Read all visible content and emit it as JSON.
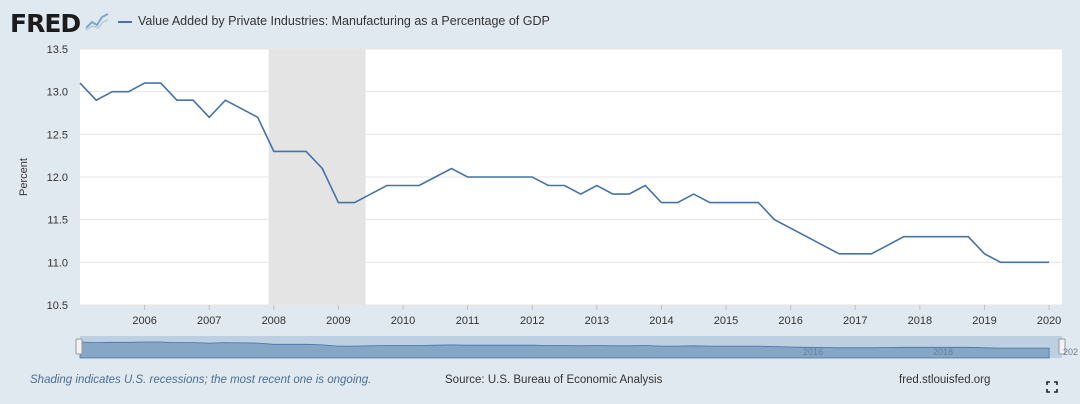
{
  "header": {
    "logo_text": "FRED",
    "legend_label": "Value Added by Private Industries: Manufacturing as a Percentage of GDP"
  },
  "chart_data": {
    "type": "line",
    "title": "",
    "xlabel": "",
    "ylabel": "Percent",
    "xlim": [
      2005.0,
      2020.2
    ],
    "ylim": [
      10.5,
      13.5
    ],
    "yticks": [
      "10.5",
      "11.0",
      "11.5",
      "12.0",
      "12.5",
      "13.0",
      "13.5"
    ],
    "xticks": [
      "2006",
      "2007",
      "2008",
      "2009",
      "2010",
      "2011",
      "2012",
      "2013",
      "2014",
      "2015",
      "2016",
      "2017",
      "2018",
      "2019",
      "2020"
    ],
    "grid": true,
    "recession": [
      2007.92,
      2009.42
    ],
    "series": [
      {
        "name": "Value Added by Private Industries: Manufacturing as a Percentage of GDP",
        "color": "#4572a7",
        "x": [
          2005.0,
          2005.25,
          2005.5,
          2005.75,
          2006.0,
          2006.25,
          2006.5,
          2006.75,
          2007.0,
          2007.25,
          2007.5,
          2007.75,
          2008.0,
          2008.25,
          2008.5,
          2008.75,
          2009.0,
          2009.25,
          2009.5,
          2009.75,
          2010.0,
          2010.25,
          2010.5,
          2010.75,
          2011.0,
          2011.25,
          2011.5,
          2011.75,
          2012.0,
          2012.25,
          2012.5,
          2012.75,
          2013.0,
          2013.25,
          2013.5,
          2013.75,
          2014.0,
          2014.25,
          2014.5,
          2014.75,
          2015.0,
          2015.25,
          2015.5,
          2015.75,
          2016.0,
          2016.25,
          2016.5,
          2016.75,
          2017.0,
          2017.25,
          2017.5,
          2017.75,
          2018.0,
          2018.25,
          2018.5,
          2018.75,
          2019.0,
          2019.25,
          2019.5,
          2019.75,
          2020.0
        ],
        "values": [
          13.1,
          12.9,
          13.0,
          13.0,
          13.1,
          13.1,
          12.9,
          12.9,
          12.7,
          12.9,
          12.8,
          12.7,
          12.3,
          12.3,
          12.3,
          12.1,
          11.7,
          11.7,
          11.8,
          11.9,
          11.9,
          11.9,
          12.0,
          12.1,
          12.0,
          12.0,
          12.0,
          12.0,
          12.0,
          11.9,
          11.9,
          11.8,
          11.9,
          11.8,
          11.8,
          11.9,
          11.7,
          11.7,
          11.8,
          11.7,
          11.7,
          11.7,
          11.7,
          11.5,
          11.4,
          11.3,
          11.2,
          11.1,
          11.1,
          11.1,
          11.2,
          11.3,
          11.3,
          11.3,
          11.3,
          11.3,
          11.1,
          11.0,
          11.0,
          11.0,
          11.0
        ]
      }
    ]
  },
  "navigator": {
    "labels": [
      "2016",
      "2018",
      "202"
    ]
  },
  "footer": {
    "note": "Shading indicates U.S. recessions; the most recent one is ongoing.",
    "source": "Source: U.S. Bureau of Economic Analysis",
    "site": "fred.stlouisfed.org"
  },
  "icons": {
    "fullscreen": "fullscreen-icon"
  }
}
